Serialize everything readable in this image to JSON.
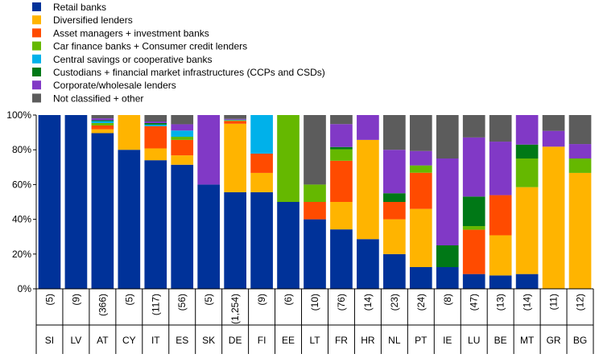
{
  "chart_data": {
    "type": "bar",
    "stacked": true,
    "categories": [
      "SI",
      "LV",
      "AT",
      "CY",
      "IT",
      "ES",
      "SK",
      "DE",
      "FI",
      "EE",
      "LT",
      "FR",
      "HR",
      "NL",
      "PT",
      "IE",
      "LU",
      "BE",
      "MT",
      "GR",
      "BG"
    ],
    "counts": [
      "(5)",
      "(9)",
      "(366)",
      "(5)",
      "(117)",
      "(56)",
      "(5)",
      "(1,254)",
      "(9)",
      "(6)",
      "(10)",
      "(76)",
      "(14)",
      "(23)",
      "(24)",
      "(8)",
      "(47)",
      "(13)",
      "(14)",
      "(11)",
      "(12)"
    ],
    "ylim": [
      0,
      100
    ],
    "yticks": [
      "0%",
      "20%",
      "40%",
      "60%",
      "80%",
      "100%"
    ],
    "legend_position": "top-left",
    "grid": false,
    "series": [
      {
        "name": "Retail banks",
        "color": "#003299",
        "values": [
          100,
          100,
          89.6,
          80,
          74,
          71.4,
          60,
          55.6,
          55.6,
          50,
          40,
          34.2,
          28.6,
          20,
          12.5,
          12.5,
          8.5,
          7.7,
          8.5,
          0,
          0
        ]
      },
      {
        "name": "Diversified lenders",
        "color": "#ffb400",
        "values": [
          0,
          0,
          2.2,
          20,
          6.8,
          5.4,
          0,
          39.4,
          11.1,
          0,
          0,
          15.8,
          57.1,
          20,
          33.5,
          0,
          0,
          23.1,
          50,
          81.8,
          66.7
        ]
      },
      {
        "name": "Asset managers + investment banks",
        "color": "#ff4b00",
        "values": [
          0,
          0,
          2.2,
          0,
          12.8,
          8.9,
          0,
          1.6,
          11.1,
          0,
          10,
          23.7,
          0,
          10,
          20.8,
          0,
          25.5,
          23.1,
          0,
          0,
          0
        ]
      },
      {
        "name": "Car finance banks + Consumer credit lenders",
        "color": "#65b800",
        "values": [
          0,
          0,
          1.4,
          0,
          0,
          1.8,
          0,
          0.3,
          0,
          50,
          10,
          6.6,
          0,
          0,
          4.2,
          0,
          2.1,
          0,
          16.5,
          0,
          8.3
        ]
      },
      {
        "name": "Central savings or cooperative banks",
        "color": "#00b1ea",
        "values": [
          0,
          0,
          1.1,
          0,
          0.9,
          3.6,
          0,
          0.2,
          22.2,
          0,
          0,
          0,
          0,
          0,
          0,
          0,
          0,
          0,
          0,
          0,
          0
        ]
      },
      {
        "name": "Custodians + financial market infrastructures (CCPs and CSDs)",
        "color": "#007816",
        "values": [
          0,
          0,
          0.5,
          0,
          0.9,
          0,
          0,
          0.2,
          0,
          0,
          0,
          1.3,
          0,
          5,
          0,
          12.5,
          17,
          0,
          8,
          0,
          0
        ]
      },
      {
        "name": "Corporate/wholesale lenders",
        "color": "#8139c6",
        "values": [
          0,
          0,
          1.1,
          0,
          0.9,
          3.6,
          40,
          0.5,
          0,
          0,
          0,
          13.2,
          14.3,
          25,
          8.3,
          50,
          34,
          30.8,
          17,
          9.1,
          8.3
        ]
      },
      {
        "name": "Not classified + other",
        "color": "#5c5c5c",
        "values": [
          0,
          0,
          1.9,
          0,
          3.7,
          5.3,
          0,
          2.2,
          0,
          0,
          40,
          5.2,
          0,
          20,
          20.7,
          25,
          12.9,
          15.3,
          0,
          9.1,
          16.7
        ]
      }
    ]
  }
}
